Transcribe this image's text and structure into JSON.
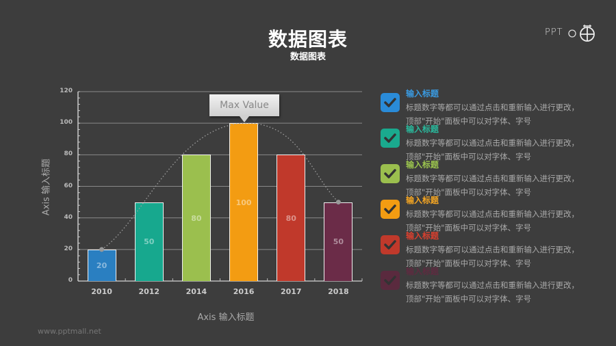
{
  "header": {
    "title": "数据图表",
    "subtitle": "数据图表",
    "logo_text": "PPT",
    "logo_icon": "ppt-logo-icon"
  },
  "footer": {
    "watermark": "www.pptmall.net"
  },
  "chart_data": {
    "type": "bar",
    "title": "",
    "categories": [
      "2010",
      "2012",
      "2014",
      "2016",
      "2017",
      "2018"
    ],
    "values": [
      20,
      50,
      80,
      100,
      80,
      50
    ],
    "colors": [
      "#2a7fc1",
      "#17a88e",
      "#9bbf4e",
      "#f39c12",
      "#c0392b",
      "#6b2c48"
    ],
    "xlabel": "Axis 输入标题",
    "ylabel": "Axis 输入标题",
    "ylim": [
      0,
      120
    ],
    "yticks": [
      "0",
      "20",
      "40",
      "60",
      "80",
      "100",
      "120"
    ],
    "grid": true,
    "annotation": {
      "text": "Max Value",
      "category": "2016"
    },
    "trendline": {
      "style": "dotted",
      "through": "bar tops, smooth curve"
    }
  },
  "legend": {
    "items": [
      {
        "title": "输入标题",
        "desc": "标题数字等都可以通过点击和重新输入进行更改，顶部\"开始\"面板中可以对字体、字号",
        "color": "#2a8bd8",
        "title_color": "#3a9ae0"
      },
      {
        "title": "输入标题",
        "desc": "标题数字等都可以通过点击和重新输入进行更改，顶部\"开始\"面板中可以对字体、字号",
        "color": "#1aaa8e",
        "title_color": "#2ab89c"
      },
      {
        "title": "输入标题",
        "desc": "标题数字等都可以通过点击和重新输入进行更改，顶部\"开始\"面板中可以对字体、字号",
        "color": "#9bbf4e",
        "title_color": "#9bc44e"
      },
      {
        "title": "输入标题",
        "desc": "标题数字等都可以通过点击和重新输入进行更改，顶部\"开始\"面板中可以对字体、字号",
        "color": "#f39c12",
        "title_color": "#f5a623"
      },
      {
        "title": "输入标题",
        "desc": "标题数字等都可以通过点击和重新输入进行更改，顶部\"开始\"面板中可以对字体、字号",
        "color": "#c0392b",
        "title_color": "#d9402f"
      },
      {
        "title": "输入标题",
        "desc": "标题数字等都可以通过点击和重新输入进行更改，顶部\"开始\"面板中可以对字体、字号",
        "color": "#5a2a3e",
        "title_color": "#5e2b40"
      }
    ]
  }
}
